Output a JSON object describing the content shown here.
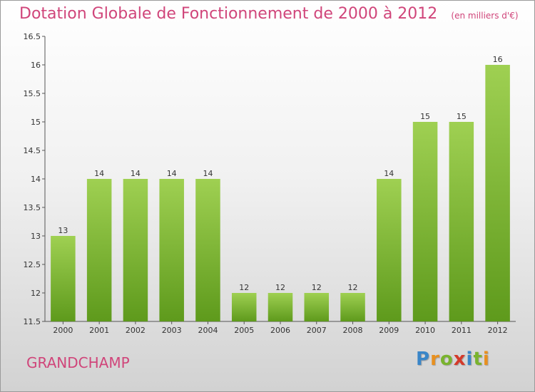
{
  "chart_data": {
    "type": "bar",
    "title": "Dotation Globale de Fonctionnement de 2000 à 2012",
    "subtitle": "(en milliers d'€)",
    "categories": [
      "2000",
      "2001",
      "2002",
      "2003",
      "2004",
      "2005",
      "2006",
      "2007",
      "2008",
      "2009",
      "2010",
      "2011",
      "2012"
    ],
    "values": [
      13,
      14,
      14,
      14,
      14,
      12,
      12,
      12,
      12,
      14,
      15,
      15,
      16
    ],
    "ylim": [
      11.5,
      16.5
    ],
    "yticks": [
      11.5,
      12,
      12.5,
      13,
      13.5,
      14,
      14.5,
      15,
      15.5,
      16,
      16.5
    ],
    "grid": false,
    "bar_color": "#7db63a"
  },
  "footer": {
    "commune": "GRANDCHAMP",
    "logo_letters": [
      "P",
      "r",
      "o",
      "x",
      "i",
      "t",
      "i"
    ],
    "logo_colors": [
      "#3a86c8",
      "#e8901f",
      "#79b32e",
      "#d43a2a",
      "#3a86c8",
      "#79b32e",
      "#e8901f"
    ]
  }
}
